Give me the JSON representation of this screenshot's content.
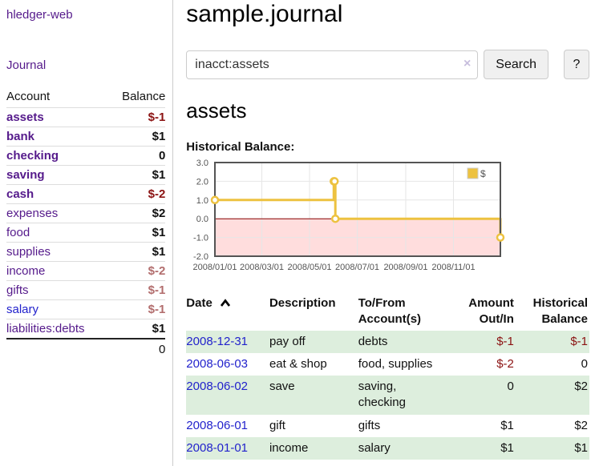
{
  "app": {
    "title": "hledger-web"
  },
  "sidebar": {
    "nav": {
      "journal_label": "Journal"
    },
    "accounts_table": {
      "headers": {
        "account": "Account",
        "balance": "Balance"
      },
      "rows": [
        {
          "name": "assets",
          "balance": "$-1",
          "level": 1,
          "bold": true,
          "link": "purple",
          "neg": "strong"
        },
        {
          "name": "bank",
          "balance": "$1",
          "level": 2,
          "bold": true,
          "link": "purple",
          "neg": null
        },
        {
          "name": "checking",
          "balance": "0",
          "level": 3,
          "bold": true,
          "link": "purple",
          "neg": null
        },
        {
          "name": "saving",
          "balance": "$1",
          "level": 3,
          "bold": true,
          "link": "purple",
          "neg": null
        },
        {
          "name": "cash",
          "balance": "$-2",
          "level": 2,
          "bold": true,
          "link": "purple",
          "neg": "strong"
        },
        {
          "name": "expenses",
          "balance": "$2",
          "level": 1,
          "bold": false,
          "link": "purple",
          "neg": null
        },
        {
          "name": "food",
          "balance": "$1",
          "level": 2,
          "bold": false,
          "link": "purple",
          "neg": null
        },
        {
          "name": "supplies",
          "balance": "$1",
          "level": 2,
          "bold": false,
          "link": "purple",
          "neg": null
        },
        {
          "name": "income",
          "balance": "$-2",
          "level": 1,
          "bold": false,
          "link": "purple",
          "neg": "light"
        },
        {
          "name": "gifts",
          "balance": "$-1",
          "level": 2,
          "bold": false,
          "link": "purple",
          "neg": "light"
        },
        {
          "name": "salary",
          "balance": "$-1",
          "level": 2,
          "bold": false,
          "link": "blue",
          "neg": "light"
        },
        {
          "name": "liabilities:debts",
          "balance": "$1",
          "level": 1,
          "bold": false,
          "link": "purple",
          "neg": null
        }
      ],
      "total": "0"
    }
  },
  "main": {
    "title": "sample.journal",
    "search": {
      "value": "inacct:assets",
      "clear_icon": "×",
      "button_label": "Search",
      "help_label": "?"
    },
    "account_heading": "assets",
    "register": {
      "columns": [
        {
          "key": "date",
          "label": "Date",
          "align": "left",
          "sorted_ascending": true
        },
        {
          "key": "description",
          "label": "Description",
          "align": "left",
          "sorted_ascending": false
        },
        {
          "key": "accounts",
          "label": "To/From\nAccount(s)",
          "align": "left",
          "sorted_ascending": false
        },
        {
          "key": "amount",
          "label": "Amount\nOut/In",
          "align": "right",
          "sorted_ascending": false
        },
        {
          "key": "balance",
          "label": "Historical\nBalance",
          "align": "right",
          "sorted_ascending": false
        }
      ],
      "rows": [
        {
          "date": "2008-12-31",
          "description": "pay off",
          "accounts": "debts",
          "amount": "$-1",
          "amount_neg": true,
          "balance": "$-1",
          "balance_neg": true,
          "shaded": true,
          "wrap_accounts": false
        },
        {
          "date": "2008-06-03",
          "description": "eat & shop",
          "accounts": "food, supplies",
          "amount": "$-2",
          "amount_neg": true,
          "balance": "0",
          "balance_neg": false,
          "shaded": false,
          "wrap_accounts": false
        },
        {
          "date": "2008-06-02",
          "description": "save",
          "accounts": "saving, checking",
          "amount": "0",
          "amount_neg": false,
          "balance": "$2",
          "balance_neg": false,
          "shaded": true,
          "wrap_accounts": true
        },
        {
          "date": "2008-06-01",
          "description": "gift",
          "accounts": "gifts",
          "amount": "$1",
          "amount_neg": false,
          "balance": "$2",
          "balance_neg": false,
          "shaded": false,
          "wrap_accounts": false
        },
        {
          "date": "2008-01-01",
          "description": "income",
          "accounts": "salary",
          "amount": "$1",
          "amount_neg": false,
          "balance": "$1",
          "balance_neg": false,
          "shaded": true,
          "wrap_accounts": false
        }
      ]
    }
  },
  "chart_data": {
    "type": "line",
    "step": true,
    "title": "Historical Balance:",
    "series": [
      {
        "name": "$",
        "color": "#edc240",
        "points": [
          [
            "2008-01-01",
            1
          ],
          [
            "2008-06-01",
            2
          ],
          [
            "2008-06-02",
            2
          ],
          [
            "2008-06-03",
            0
          ],
          [
            "2008-12-31",
            -1
          ]
        ]
      }
    ],
    "x_range": [
      "2008-01-01",
      "2008-12-31"
    ],
    "x_ticks": [
      {
        "label": "2008/01/01",
        "date": "2008-01-01"
      },
      {
        "label": "2008/03/01",
        "date": "2008-03-01"
      },
      {
        "label": "2008/05/01",
        "date": "2008-05-01"
      },
      {
        "label": "2008/07/01",
        "date": "2008-07-01"
      },
      {
        "label": "2008/09/01",
        "date": "2008-09-01"
      },
      {
        "label": "2008/11/01",
        "date": "2008-11-01"
      }
    ],
    "y_ticks": [
      "3.0",
      "2.0",
      "1.0",
      "0.0",
      "-1.0",
      "-2.0"
    ],
    "ylim": [
      -2,
      3
    ],
    "grid": true,
    "legend_position": "top-right",
    "colors": {
      "series": "#edc240",
      "grid": "#e6e6e6",
      "border": "#545454",
      "tick_label": "#545454",
      "negative_region": "#ffdddd",
      "zero_line": "#8b0000"
    }
  }
}
